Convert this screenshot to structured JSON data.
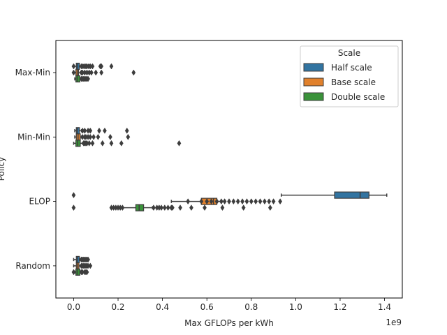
{
  "chart_data": {
    "type": "boxplot",
    "orientation": "horizontal",
    "xlabel": "Max GFLOPs per kWh",
    "ylabel": "Policy",
    "x_offset_label": "1e9",
    "x_scale": 1000000000,
    "xlim": [
      -0.08,
      1.48
    ],
    "xticks": [
      0.0,
      0.2,
      0.4,
      0.6,
      0.8,
      1.0,
      1.2,
      1.4
    ],
    "xtick_labels": [
      "0.0",
      "0.2",
      "0.4",
      "0.6",
      "0.8",
      "1.0",
      "1.2",
      "1.4"
    ],
    "categories": [
      "Max-Min",
      "Min-Min",
      "ELOP",
      "Random"
    ],
    "legend": {
      "title": "Scale",
      "placement": "top-right",
      "entries": [
        "Half scale",
        "Base scale",
        "Double scale"
      ]
    },
    "series": [
      {
        "name": "Half scale",
        "color": "#3274a1",
        "boxes": [
          {
            "category": "Max-Min",
            "whisker_low": 0.0,
            "q1": 0.012,
            "median": 0.018,
            "q3": 0.026,
            "whisker_high": 0.035,
            "outliers": [
              0.0,
              0.035,
              0.042,
              0.048,
              0.055,
              0.06,
              0.068,
              0.075,
              0.085,
              0.12,
              0.125,
              0.17
            ]
          },
          {
            "category": "Min-Min",
            "whisker_low": 0.005,
            "q1": 0.012,
            "median": 0.018,
            "q3": 0.026,
            "whisker_high": 0.035,
            "outliers": [
              0.04,
              0.05,
              0.065,
              0.075,
              0.115,
              0.14,
              0.24
            ]
          },
          {
            "category": "ELOP",
            "whisker_low": 0.935,
            "q1": 1.175,
            "median": 1.29,
            "q3": 1.33,
            "whisker_high": 1.41,
            "outliers": [
              0.0
            ]
          },
          {
            "category": "Random",
            "whisker_low": 0.0,
            "q1": 0.012,
            "median": 0.018,
            "q3": 0.026,
            "whisker_high": 0.03,
            "outliers": [
              0.035,
              0.04,
              0.045,
              0.05,
              0.055,
              0.06,
              0.065
            ]
          }
        ]
      },
      {
        "name": "Base scale",
        "color": "#e1812c",
        "boxes": [
          {
            "category": "Max-Min",
            "whisker_low": 0.0,
            "q1": 0.01,
            "median": 0.016,
            "q3": 0.022,
            "whisker_high": 0.03,
            "outliers": [
              0.0,
              0.035,
              0.04,
              0.05,
              0.06,
              0.07,
              0.08,
              0.1,
              0.125,
              0.27
            ]
          },
          {
            "category": "Min-Min",
            "whisker_low": 0.005,
            "q1": 0.012,
            "median": 0.02,
            "q3": 0.03,
            "whisker_high": 0.035,
            "outliers": [
              0.04,
              0.05,
              0.055,
              0.065,
              0.075,
              0.09,
              0.11,
              0.165,
              0.245
            ]
          },
          {
            "category": "ELOP",
            "whisker_low": 0.44,
            "q1": 0.575,
            "median": 0.63,
            "q3": 0.645,
            "whisker_high": 0.68,
            "outliers": [
              0.515,
              0.575,
              0.6,
              0.62,
              0.645,
              0.665,
              0.68,
              0.7,
              0.72,
              0.74,
              0.76,
              0.78,
              0.8,
              0.82,
              0.84,
              0.86,
              0.88,
              0.9,
              0.93
            ]
          },
          {
            "category": "Random",
            "whisker_low": 0.0,
            "q1": 0.012,
            "median": 0.018,
            "q3": 0.024,
            "whisker_high": 0.03,
            "outliers": [
              0.035,
              0.04,
              0.045,
              0.05,
              0.055,
              0.06,
              0.065,
              0.075
            ]
          }
        ]
      },
      {
        "name": "Double scale",
        "color": "#3a923a",
        "boxes": [
          {
            "category": "Max-Min",
            "whisker_low": 0.005,
            "q1": 0.01,
            "median": 0.016,
            "q3": 0.028,
            "whisker_high": 0.032,
            "outliers": [
              0.035,
              0.04,
              0.045,
              0.05,
              0.055,
              0.06,
              0.065
            ]
          },
          {
            "category": "Min-Min",
            "whisker_low": 0.0,
            "q1": 0.01,
            "median": 0.018,
            "q3": 0.03,
            "whisker_high": 0.04,
            "outliers": [
              0.045,
              0.05,
              0.055,
              0.06,
              0.07,
              0.085,
              0.13,
              0.17,
              0.215,
              0.475
            ]
          },
          {
            "category": "ELOP",
            "whisker_low": 0.18,
            "q1": 0.28,
            "median": 0.295,
            "q3": 0.315,
            "whisker_high": 0.355,
            "outliers": [
              0.0,
              0.17,
              0.18,
              0.19,
              0.2,
              0.21,
              0.22,
              0.36,
              0.375,
              0.385,
              0.395,
              0.41,
              0.425,
              0.44,
              0.445,
              0.48,
              0.53,
              0.59,
              0.67,
              0.765,
              0.885
            ]
          },
          {
            "category": "Random",
            "whisker_low": 0.005,
            "q1": 0.01,
            "median": 0.016,
            "q3": 0.028,
            "whisker_high": 0.032,
            "outliers": [
              0.0,
              0.035,
              0.04,
              0.05,
              0.055,
              0.06
            ]
          }
        ]
      }
    ]
  }
}
